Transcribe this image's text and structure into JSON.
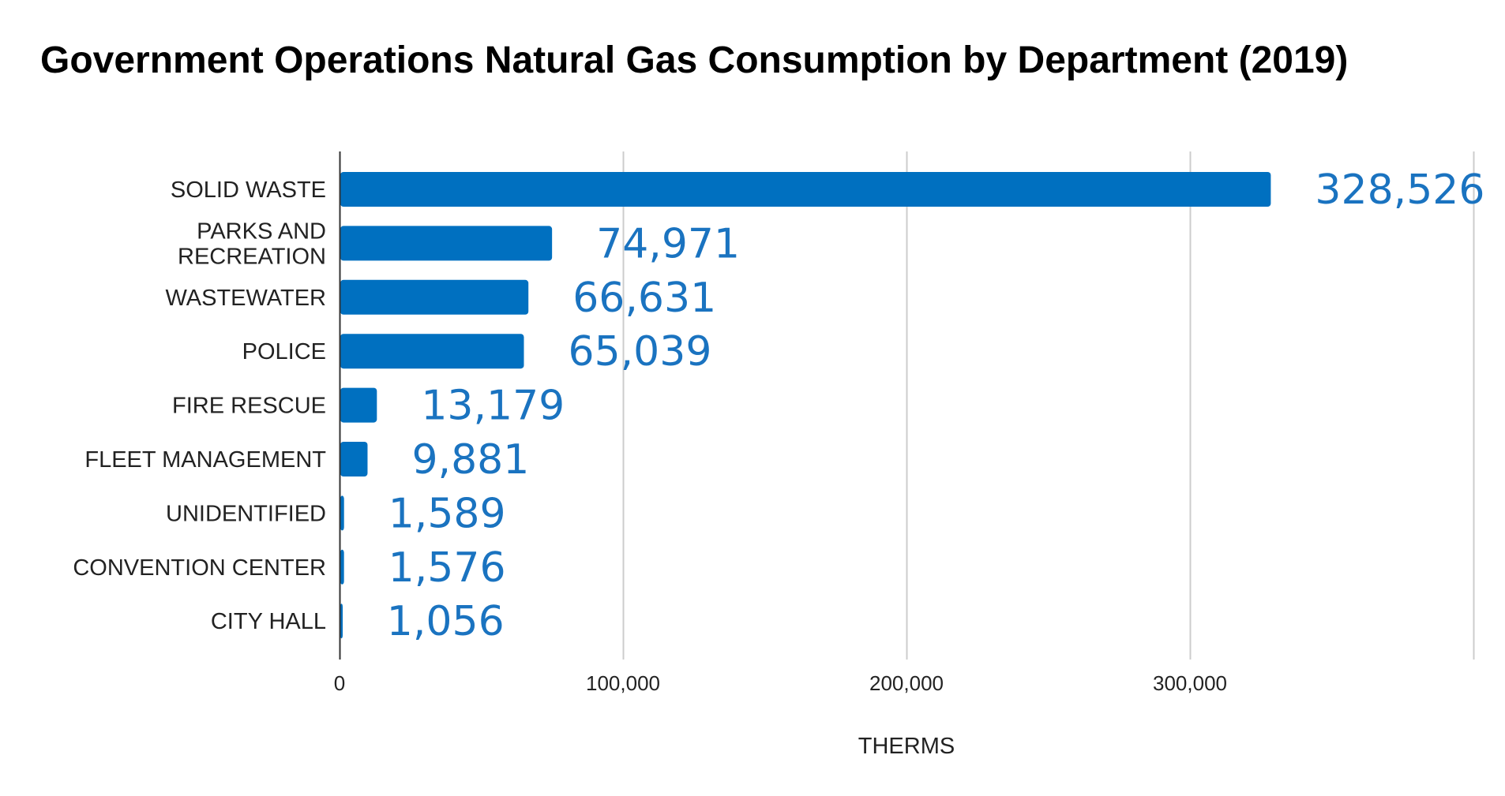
{
  "chart_data": {
    "type": "bar",
    "orientation": "horizontal",
    "title": "Government Operations Natural Gas Consumption by Department (2019)",
    "xlabel": "THERMS",
    "ylabel": "",
    "categories": [
      "SOLID WASTE",
      "PARKS AND RECREATION",
      "WASTEWATER",
      "POLICE",
      "FIRE RESCUE",
      "FLEET MANAGEMENT",
      "UNIDENTIFIED",
      "CONVENTION CENTER",
      "CITY HALL"
    ],
    "category_lines": [
      [
        "SOLID WASTE"
      ],
      [
        "PARKS AND",
        "RECREATION"
      ],
      [
        "WASTEWATER"
      ],
      [
        "POLICE"
      ],
      [
        "FIRE RESCUE"
      ],
      [
        "FLEET MANAGEMENT"
      ],
      [
        "UNIDENTIFIED"
      ],
      [
        "CONVENTION CENTER"
      ],
      [
        "CITY HALL"
      ]
    ],
    "values": [
      328526,
      74971,
      66631,
      65039,
      13179,
      9881,
      1589,
      1576,
      1056
    ],
    "value_labels": [
      "328,526",
      "74,971",
      "66,631",
      "65,039",
      "13,179",
      "9,881",
      "1,589",
      "1,576",
      "1,056"
    ],
    "xlim": [
      0,
      400000
    ],
    "xticks": [
      0,
      100000,
      200000,
      300000
    ],
    "xtick_labels": [
      "0",
      "100,000",
      "200,000",
      "300,000"
    ],
    "grid": true,
    "legend": "none",
    "bar_color": "#0070c0",
    "label_color": "#1a73c0"
  }
}
